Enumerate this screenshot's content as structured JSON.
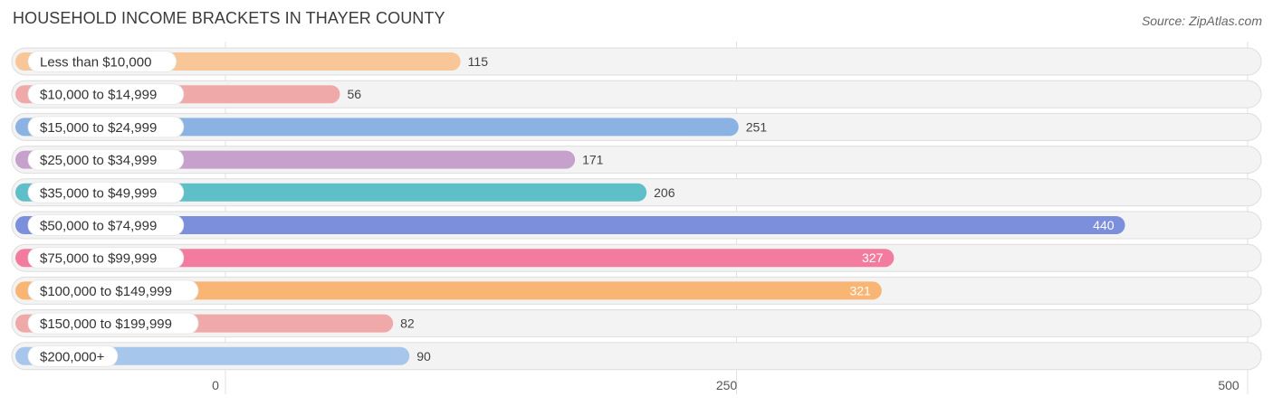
{
  "title": "HOUSEHOLD INCOME BRACKETS IN THAYER COUNTY",
  "source": "Source: ZipAtlas.com",
  "chart_data": {
    "type": "bar",
    "orientation": "horizontal",
    "title": "HOUSEHOLD INCOME BRACKETS IN THAYER COUNTY",
    "categories": [
      "Less than $10,000",
      "$10,000 to $14,999",
      "$15,000 to $24,999",
      "$25,000 to $34,999",
      "$35,000 to $49,999",
      "$50,000 to $74,999",
      "$75,000 to $99,999",
      "$100,000 to $149,999",
      "$150,000 to $199,999",
      "$200,000+"
    ],
    "values": [
      115,
      56,
      251,
      171,
      206,
      440,
      327,
      321,
      82,
      90
    ],
    "colors": [
      "#f9c797",
      "#f0a9a9",
      "#8ab3e3",
      "#c5a1cb",
      "#5fbfc9",
      "#7c8fdc",
      "#f47ba0",
      "#f9b574",
      "#f0a9a9",
      "#a6c6ec"
    ],
    "xlim": [
      0,
      500
    ],
    "xticks": [
      0,
      250,
      500
    ],
    "grid": true,
    "legend": "none"
  }
}
